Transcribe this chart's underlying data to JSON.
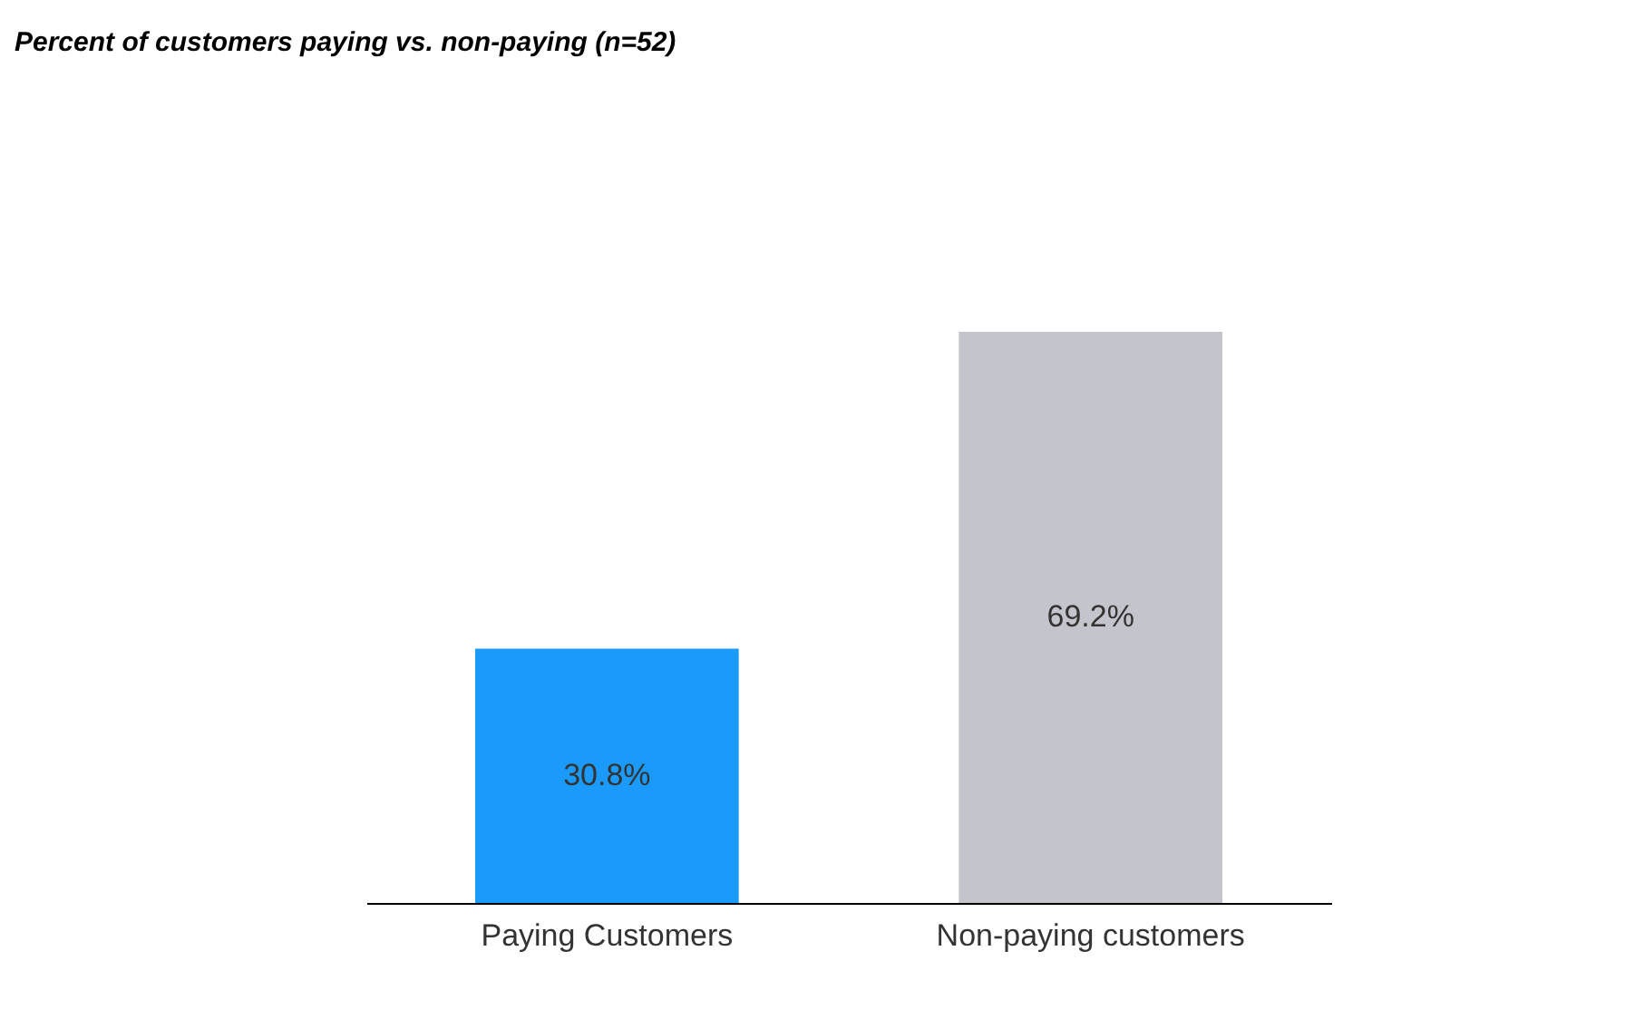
{
  "chart_data": {
    "type": "bar",
    "title": "Percent of customers paying vs. non-paying (n=52)",
    "categories": [
      "Paying Customers",
      "Non-paying customers"
    ],
    "values": [
      30.8,
      69.2
    ],
    "colors": [
      "#1a9bfc",
      "#c4c4cc"
    ],
    "value_labels": [
      "30.8%",
      "69.2%"
    ]
  }
}
